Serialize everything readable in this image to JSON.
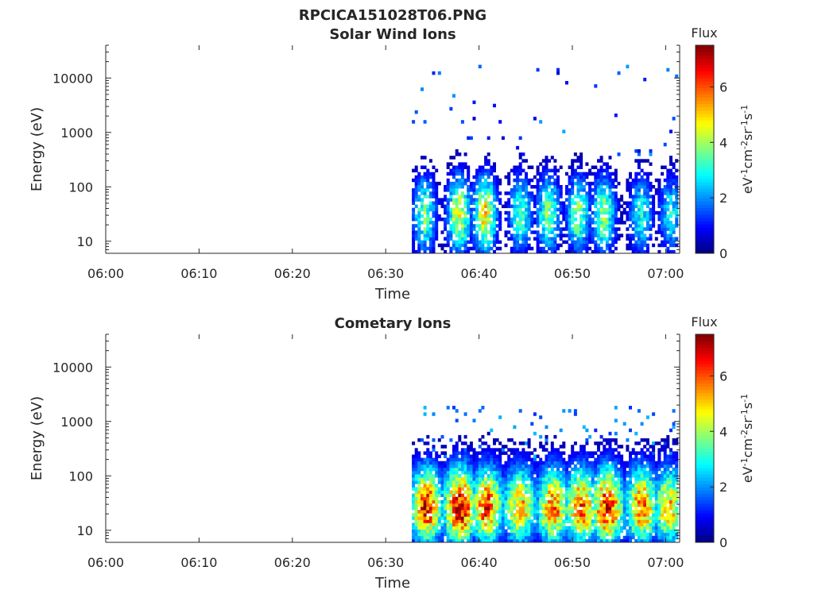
{
  "figure": {
    "title": "RPCICA151028T06.PNG"
  },
  "chart_data": [
    {
      "type": "heatmap",
      "title": "Solar Wind Ions",
      "xlabel": "Time",
      "ylabel": "Energy (eV)",
      "y_scale": "log",
      "xlim_minutes": [
        0,
        61.5
      ],
      "ylim": [
        6,
        40000
      ],
      "x_tick_labels": [
        "06:00",
        "06:10",
        "06:20",
        "06:30",
        "06:40",
        "06:50",
        "07:00"
      ],
      "x_tick_minutes": [
        0,
        10,
        20,
        30,
        40,
        50,
        60
      ],
      "y_ticks": [
        10,
        100,
        1000,
        10000
      ],
      "y_tick_labels": [
        "10",
        "100",
        "1000",
        "10000"
      ],
      "colorbar": {
        "label": "Flux",
        "unit_label": "eV-1cm-2sr-1s-1",
        "range": [
          0,
          7.5
        ],
        "ticks": [
          0,
          2,
          4,
          6
        ],
        "tick_labels": [
          "0",
          "2",
          "4",
          "6"
        ],
        "colormap": "jet"
      },
      "data_start_minute": 32.8,
      "burst_center_minutes": [
        34.0,
        37.7,
        40.5,
        44.3,
        47.3,
        50.5,
        53.2,
        57.2,
        60.4
      ],
      "burst_peak_flux": [
        3.6,
        4.6,
        4.8,
        3.4,
        3.8,
        3.7,
        3.9,
        3.0,
        2.8
      ],
      "scatter_high_energy": true
    },
    {
      "type": "heatmap",
      "title": "Cometary Ions",
      "xlabel": "Time",
      "ylabel": "Energy (eV)",
      "y_scale": "log",
      "xlim_minutes": [
        0,
        61.5
      ],
      "ylim": [
        6,
        40000
      ],
      "x_tick_labels": [
        "06:00",
        "06:10",
        "06:20",
        "06:30",
        "06:40",
        "06:50",
        "07:00"
      ],
      "x_tick_minutes": [
        0,
        10,
        20,
        30,
        40,
        50,
        60
      ],
      "y_ticks": [
        10,
        100,
        1000,
        10000
      ],
      "y_tick_labels": [
        "10",
        "100",
        "1000",
        "10000"
      ],
      "colorbar": {
        "label": "Flux",
        "unit_label": "eV-1cm-2sr-1s-1",
        "range": [
          0,
          7.5
        ],
        "ticks": [
          0,
          2,
          4,
          6
        ],
        "tick_labels": [
          "0",
          "2",
          "4",
          "6"
        ],
        "colormap": "jet"
      },
      "data_start_minute": 32.8,
      "burst_center_minutes": [
        34.2,
        37.8,
        40.7,
        44.2,
        47.8,
        50.8,
        53.6,
        57.3,
        60.2
      ],
      "burst_peak_flux": [
        6.2,
        6.8,
        6.0,
        5.2,
        5.6,
        5.8,
        6.4,
        5.6,
        5.0
      ],
      "scatter_high_energy": false
    }
  ]
}
